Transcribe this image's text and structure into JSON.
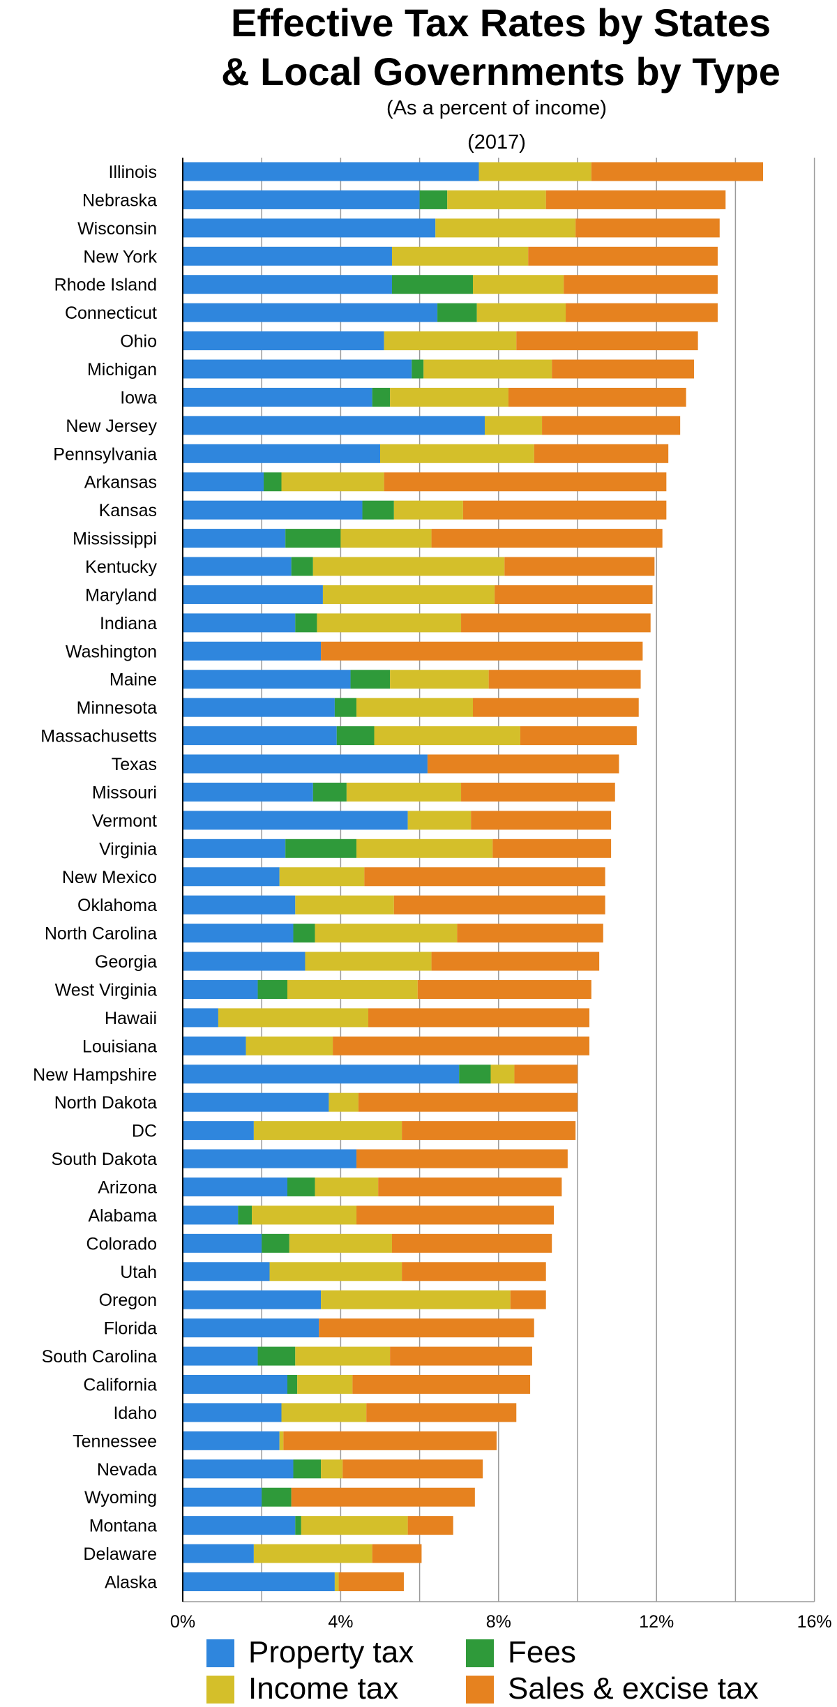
{
  "chart_data": {
    "type": "bar",
    "orientation": "horizontal",
    "stacked": true,
    "title_line1": "Effective Tax Rates by States",
    "title_line2": "& Local Governments by Type",
    "subtitle": "(As a percent of income)",
    "year": "(2017)",
    "xlim": [
      0,
      16
    ],
    "xticks": [
      "0%",
      "4%",
      "8%",
      "12%",
      "16%"
    ],
    "xtick_values": [
      0,
      4,
      8,
      12,
      16
    ],
    "grid_step": 2,
    "legend_position": "bottom",
    "series": [
      {
        "name": "Property tax",
        "color": "#2f86dd"
      },
      {
        "name": "Fees",
        "color": "#2f9a3a"
      },
      {
        "name": "Income tax",
        "color": "#d4bf2a"
      },
      {
        "name": "Sales & excise tax",
        "color": "#e6821f"
      }
    ],
    "states": [
      {
        "name": "Illinois",
        "values": [
          7.5,
          0.0,
          2.85,
          4.35
        ]
      },
      {
        "name": "Nebraska",
        "values": [
          6.0,
          0.7,
          2.5,
          4.55
        ]
      },
      {
        "name": "Wisconsin",
        "values": [
          6.4,
          0.0,
          3.55,
          3.65
        ]
      },
      {
        "name": "New York",
        "values": [
          5.3,
          0.0,
          3.45,
          4.8
        ]
      },
      {
        "name": "Rhode Island",
        "values": [
          5.3,
          2.05,
          2.3,
          3.9
        ]
      },
      {
        "name": "Connecticut",
        "values": [
          6.45,
          1.0,
          2.25,
          3.85
        ]
      },
      {
        "name": "Ohio",
        "values": [
          5.1,
          0.0,
          3.35,
          4.6
        ]
      },
      {
        "name": "Michigan",
        "values": [
          5.8,
          0.3,
          3.25,
          3.6
        ]
      },
      {
        "name": "Iowa",
        "values": [
          4.8,
          0.45,
          3.0,
          4.5
        ]
      },
      {
        "name": "New Jersey",
        "values": [
          7.65,
          0.0,
          1.45,
          3.5
        ]
      },
      {
        "name": "Pennsylvania",
        "values": [
          5.0,
          0.0,
          3.9,
          3.4
        ]
      },
      {
        "name": "Arkansas",
        "values": [
          2.05,
          0.45,
          2.6,
          7.15
        ]
      },
      {
        "name": "Kansas",
        "values": [
          4.55,
          0.8,
          1.75,
          5.15
        ]
      },
      {
        "name": "Mississippi",
        "values": [
          2.6,
          1.4,
          2.3,
          5.85
        ]
      },
      {
        "name": "Kentucky",
        "values": [
          2.75,
          0.55,
          4.85,
          3.8
        ]
      },
      {
        "name": "Maryland",
        "values": [
          3.55,
          0.0,
          4.35,
          4.0
        ]
      },
      {
        "name": "Indiana",
        "values": [
          2.85,
          0.55,
          3.65,
          4.8
        ]
      },
      {
        "name": "Washington",
        "values": [
          3.5,
          0.0,
          0.0,
          8.15
        ]
      },
      {
        "name": "Maine",
        "values": [
          4.25,
          1.0,
          2.5,
          3.85
        ]
      },
      {
        "name": "Minnesota",
        "values": [
          3.85,
          0.55,
          2.95,
          4.2
        ]
      },
      {
        "name": "Massachusetts",
        "values": [
          3.9,
          0.95,
          3.7,
          2.95
        ]
      },
      {
        "name": "Texas",
        "values": [
          6.2,
          0.0,
          0.0,
          4.85
        ]
      },
      {
        "name": "Missouri",
        "values": [
          3.3,
          0.85,
          2.9,
          3.9
        ]
      },
      {
        "name": "Vermont",
        "values": [
          5.7,
          0.0,
          1.6,
          3.55
        ]
      },
      {
        "name": "Virginia",
        "values": [
          2.6,
          1.8,
          3.45,
          3.0
        ]
      },
      {
        "name": "New Mexico",
        "values": [
          2.45,
          0.0,
          2.15,
          6.1
        ]
      },
      {
        "name": "Oklahoma",
        "values": [
          2.85,
          0.0,
          2.5,
          5.35
        ]
      },
      {
        "name": "North Carolina",
        "values": [
          2.8,
          0.55,
          3.6,
          3.7
        ]
      },
      {
        "name": "Georgia",
        "values": [
          3.1,
          0.0,
          3.2,
          4.25
        ]
      },
      {
        "name": "West Virginia",
        "values": [
          1.9,
          0.75,
          3.3,
          4.4
        ]
      },
      {
        "name": "Hawaii",
        "values": [
          0.9,
          0.0,
          3.8,
          5.6
        ]
      },
      {
        "name": "Louisiana",
        "values": [
          1.6,
          0.0,
          2.2,
          6.5
        ]
      },
      {
        "name": "New Hampshire",
        "values": [
          7.0,
          0.8,
          0.6,
          1.6
        ]
      },
      {
        "name": "North Dakota",
        "values": [
          3.7,
          0.0,
          0.75,
          5.55
        ]
      },
      {
        "name": "DC",
        "values": [
          1.8,
          0.0,
          3.75,
          4.4
        ]
      },
      {
        "name": "South Dakota",
        "values": [
          4.4,
          0.0,
          0.0,
          5.35
        ]
      },
      {
        "name": "Arizona",
        "values": [
          2.65,
          0.7,
          1.6,
          4.65
        ]
      },
      {
        "name": "Alabama",
        "values": [
          1.4,
          0.35,
          2.65,
          5.0
        ]
      },
      {
        "name": "Colorado",
        "values": [
          2.0,
          0.7,
          2.6,
          4.05
        ]
      },
      {
        "name": "Utah",
        "values": [
          2.2,
          0.0,
          3.35,
          3.65
        ]
      },
      {
        "name": "Oregon",
        "values": [
          3.5,
          0.0,
          4.8,
          0.9
        ]
      },
      {
        "name": "Florida",
        "values": [
          3.45,
          0.0,
          0.0,
          5.45
        ]
      },
      {
        "name": "South Carolina",
        "values": [
          1.9,
          0.95,
          2.4,
          3.6
        ]
      },
      {
        "name": "California",
        "values": [
          2.65,
          0.25,
          1.4,
          4.5
        ]
      },
      {
        "name": "Idaho",
        "values": [
          2.5,
          0.0,
          2.15,
          3.8
        ]
      },
      {
        "name": "Tennessee",
        "values": [
          2.45,
          0.0,
          0.1,
          5.4
        ]
      },
      {
        "name": "Nevada",
        "values": [
          2.8,
          0.7,
          0.55,
          3.55
        ]
      },
      {
        "name": "Wyoming",
        "values": [
          2.0,
          0.75,
          0.0,
          4.65
        ]
      },
      {
        "name": "Montana",
        "values": [
          2.85,
          0.15,
          2.7,
          1.15
        ]
      },
      {
        "name": "Delaware",
        "values": [
          1.8,
          0.0,
          3.0,
          1.25
        ]
      },
      {
        "name": "Alaska",
        "values": [
          3.85,
          0.0,
          0.1,
          1.65
        ]
      }
    ]
  }
}
